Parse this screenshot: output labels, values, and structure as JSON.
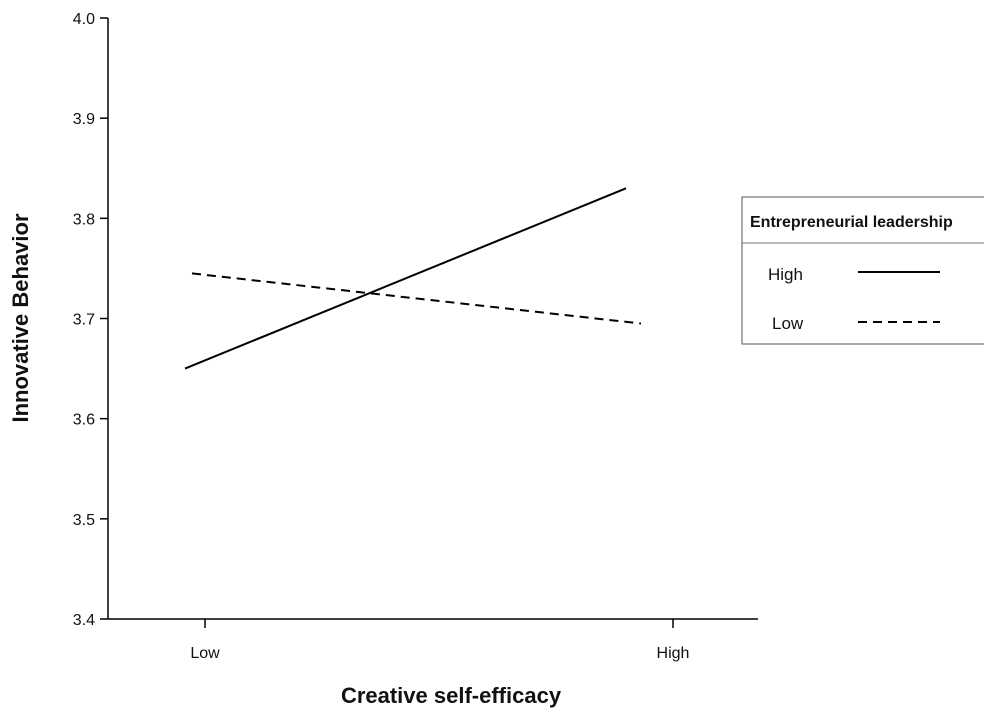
{
  "chart_data": {
    "type": "line",
    "title": "",
    "xlabel": "Creative self-efficacy",
    "ylabel": "Innovative Behavior",
    "categories": [
      "Low",
      "High"
    ],
    "ylim": [
      3.4,
      4.0
    ],
    "yticks": [
      "3.4",
      "3.5",
      "3.6",
      "3.7",
      "3.8",
      "3.9",
      "4.0"
    ],
    "grid": false,
    "legend": {
      "title": "Entrepreneurial leadership",
      "position": "right"
    },
    "series": [
      {
        "name": "High",
        "style": "solid",
        "color": "#000000",
        "values": [
          3.65,
          3.83
        ]
      },
      {
        "name": "Low",
        "style": "dashed",
        "color": "#000000",
        "values": [
          3.745,
          3.695
        ]
      }
    ]
  }
}
